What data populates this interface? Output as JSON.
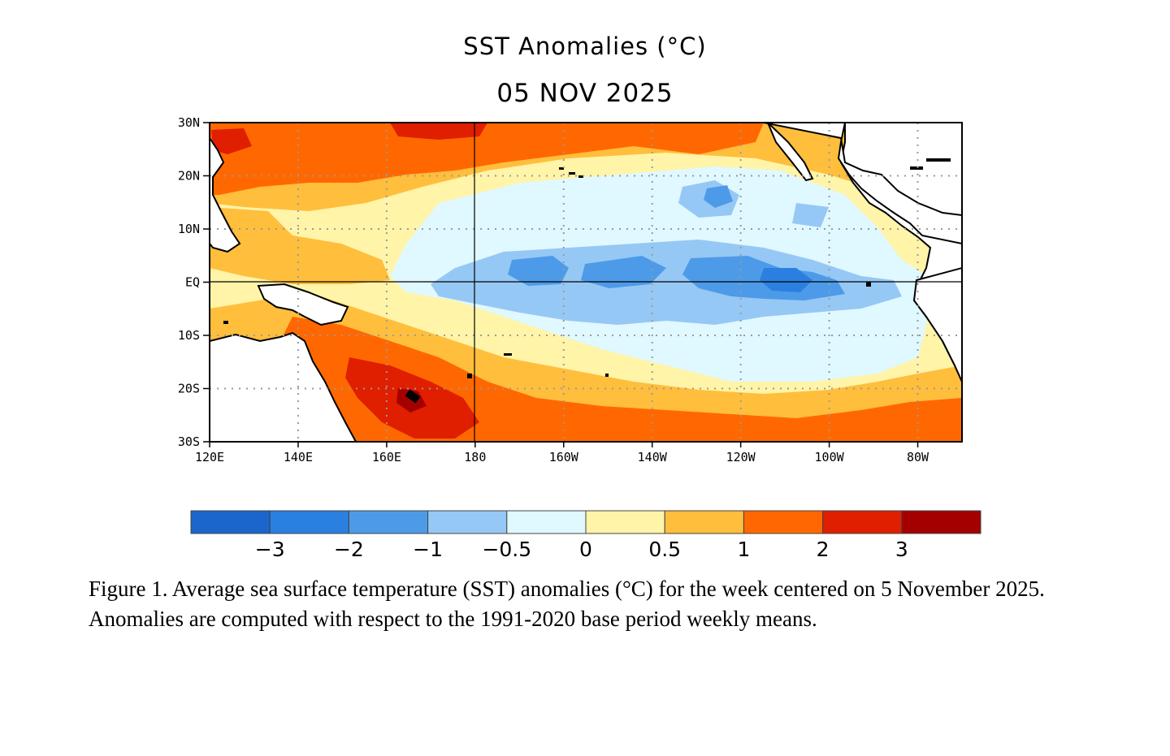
{
  "map": {
    "title": "SST Anomalies (°C)",
    "date": "05 NOV 2025",
    "variable": "Sea surface temperature anomaly",
    "units": "°C",
    "extent": {
      "lon_min_east": 120,
      "lon_max_east": 290,
      "lat_min": -30,
      "lat_max": 30
    },
    "lat_ticks": [
      {
        "label": "30N",
        "value": 30
      },
      {
        "label": "20N",
        "value": 20
      },
      {
        "label": "10N",
        "value": 10
      },
      {
        "label": "EQ",
        "value": 0
      },
      {
        "label": "10S",
        "value": -10
      },
      {
        "label": "20S",
        "value": -20
      },
      {
        "label": "30S",
        "value": -30
      }
    ],
    "lon_ticks": [
      {
        "label": "120E",
        "value": 120
      },
      {
        "label": "140E",
        "value": 140
      },
      {
        "label": "160E",
        "value": 160
      },
      {
        "label": "180",
        "value": 180
      },
      {
        "label": "160W",
        "value": 200
      },
      {
        "label": "140W",
        "value": 220
      },
      {
        "label": "120W",
        "value": 240
      },
      {
        "label": "100W",
        "value": 260
      },
      {
        "label": "80W",
        "value": 280
      }
    ],
    "reference_lines": {
      "equator_lat": 0,
      "dateline_lon": 180
    }
  },
  "colorbar": {
    "bins": [
      {
        "label": "",
        "color": "#1a66cc"
      },
      {
        "label": "-3",
        "color": "#2b7fe0"
      },
      {
        "label": "-2",
        "color": "#4d9be8"
      },
      {
        "label": "-1",
        "color": "#96c8f5"
      },
      {
        "label": "-0.5",
        "color": "#e0f8ff"
      },
      {
        "label": "0",
        "color": "#fff4a8"
      },
      {
        "label": "0.5",
        "color": "#ffbe3c"
      },
      {
        "label": "1",
        "color": "#ff6800"
      },
      {
        "label": "2",
        "color": "#e01e00"
      },
      {
        "label": "3",
        "color": "#a50000"
      }
    ],
    "labels": [
      "−3",
      "−2",
      "−1",
      "−0.5",
      "0",
      "0.5",
      "1",
      "2",
      "3"
    ]
  },
  "caption": "Figure 1. Average sea surface temperature (SST) anomalies (°C) for the week centered on 5 November 2025.  Anomalies are computed with respect to the 1991-2020 base period weekly means."
}
